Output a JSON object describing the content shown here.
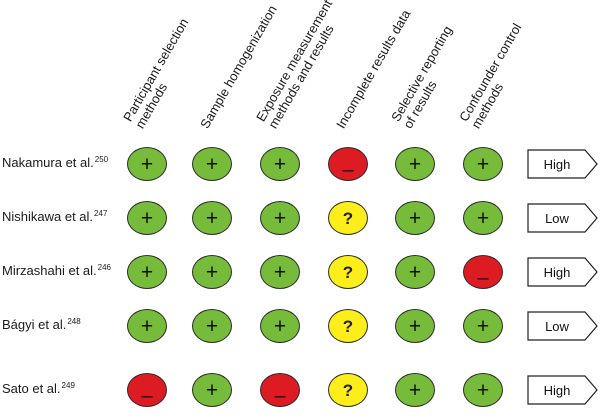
{
  "columns": [
    {
      "lines": [
        "Participant selection",
        "methods"
      ]
    },
    {
      "lines": [
        "Sample homogenization"
      ]
    },
    {
      "lines": [
        "Exposure measurement",
        "methods and results"
      ]
    },
    {
      "lines": [
        "Incomplete results data"
      ]
    },
    {
      "lines": [
        "Selective reporting",
        "of results"
      ]
    },
    {
      "lines": [
        "Confounder control",
        "methods"
      ]
    }
  ],
  "rows": [
    {
      "study": "Nakamura et al.",
      "ref": "250",
      "judgements": [
        "+",
        "+",
        "+",
        "-",
        "+",
        "+"
      ],
      "overall": "High"
    },
    {
      "study": "Nishikawa et al.",
      "ref": "247",
      "judgements": [
        "+",
        "+",
        "+",
        "?",
        "+",
        "+"
      ],
      "overall": "Low"
    },
    {
      "study": "Mirzashahi et al.",
      "ref": "246",
      "judgements": [
        "+",
        "+",
        "+",
        "?",
        "+",
        "-"
      ],
      "overall": "High"
    },
    {
      "study": "Bágyi et al.",
      "ref": "248",
      "judgements": [
        "+",
        "+",
        "+",
        "?",
        "+",
        "+"
      ],
      "overall": "Low"
    },
    {
      "study": "Sato et al.",
      "ref": "249",
      "judgements": [
        "-",
        "+",
        "-",
        "?",
        "+",
        "+"
      ],
      "overall": "High"
    }
  ],
  "symbols": {
    "+": "+",
    "-": "–",
    "?": "?"
  },
  "colors": {
    "+": "#76bb39",
    "-": "#dd1b22",
    "?": "#fbee1a"
  }
}
